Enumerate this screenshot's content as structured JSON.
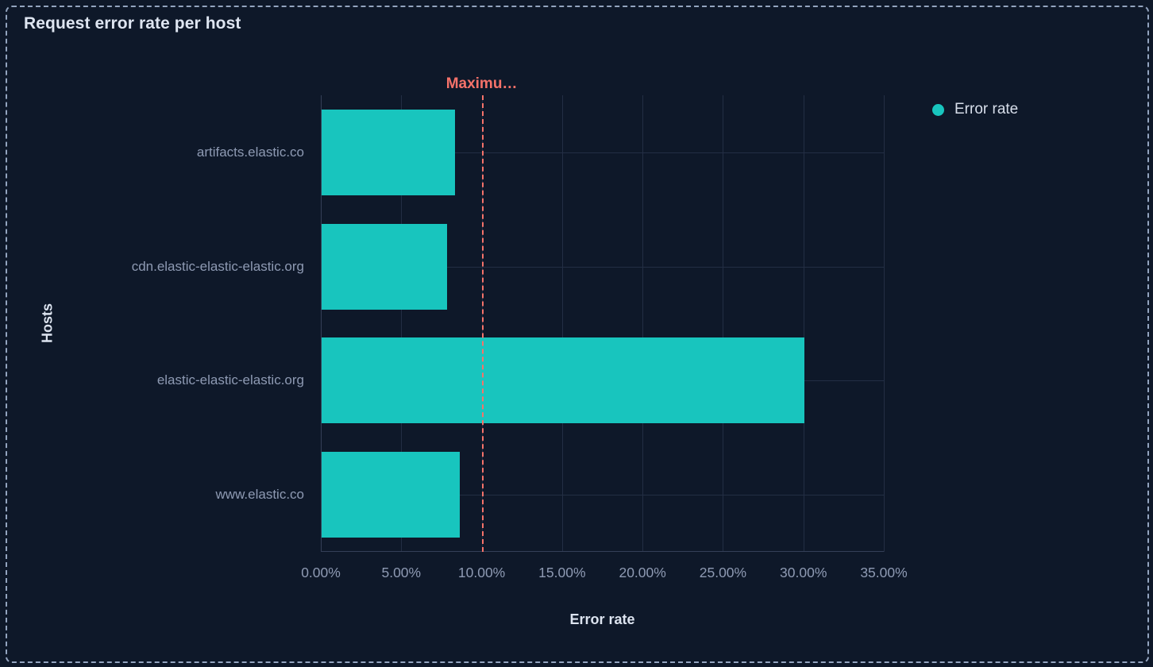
{
  "panel": {
    "title": "Request error rate per host"
  },
  "legend": {
    "items": [
      {
        "label": "Error rate",
        "color": "#18C5BE"
      }
    ]
  },
  "chart_data": {
    "type": "bar",
    "orientation": "horizontal",
    "title": "Request error rate per host",
    "categories": [
      "artifacts.elastic.co",
      "cdn.elastic-elastic-elastic.org",
      "elastic-elastic-elastic.org",
      "www.elastic.co"
    ],
    "series": [
      {
        "name": "Error rate",
        "values": [
          8.3,
          7.8,
          30.0,
          8.6
        ],
        "unit": "%"
      }
    ],
    "xlabel": "Error rate",
    "ylabel": "Hosts",
    "xlim": [
      0,
      35
    ],
    "x_ticks": [
      {
        "value": 0,
        "label": "0.00%"
      },
      {
        "value": 5,
        "label": "5.00%"
      },
      {
        "value": 10,
        "label": "10.00%"
      },
      {
        "value": 15,
        "label": "15.00%"
      },
      {
        "value": 20,
        "label": "20.00%"
      },
      {
        "value": 25,
        "label": "25.00%"
      },
      {
        "value": 30,
        "label": "30.00%"
      },
      {
        "value": 35,
        "label": "35.00%"
      }
    ],
    "grid": true,
    "legend_position": "top-right",
    "threshold": {
      "label": "Maximu…",
      "value": 10,
      "color": "#F6726A"
    },
    "bar_color": "#18C5BE"
  },
  "colors": {
    "background": "#0E1829",
    "panel_border": "#93A4BF",
    "gridline": "#232E44",
    "axis_line": "#343F57",
    "bar": "#18C5BE",
    "threshold": "#F6726A",
    "title_text": "#DEE5F1",
    "tick_text": "#8E9AB3"
  }
}
